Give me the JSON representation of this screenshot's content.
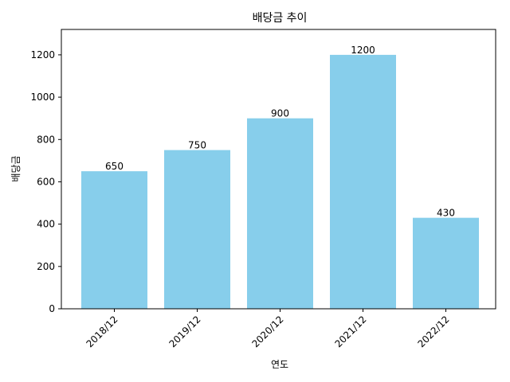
{
  "chart_data": {
    "type": "bar",
    "title": "배당금 추이",
    "xlabel": "연도",
    "ylabel": "배당금",
    "categories": [
      "2018/12",
      "2019/12",
      "2020/12",
      "2021/12",
      "2022/12"
    ],
    "values": [
      650,
      750,
      900,
      1200,
      430
    ],
    "data_labels": [
      "650",
      "750",
      "900",
      "1200",
      "430"
    ],
    "ylim": [
      0,
      1320
    ],
    "yticks": [
      0,
      200,
      400,
      600,
      800,
      1000,
      1200
    ],
    "bar_color": "#87CEEB",
    "grid": false,
    "legend": "none",
    "x_tick_rotation": "45 degrees"
  }
}
